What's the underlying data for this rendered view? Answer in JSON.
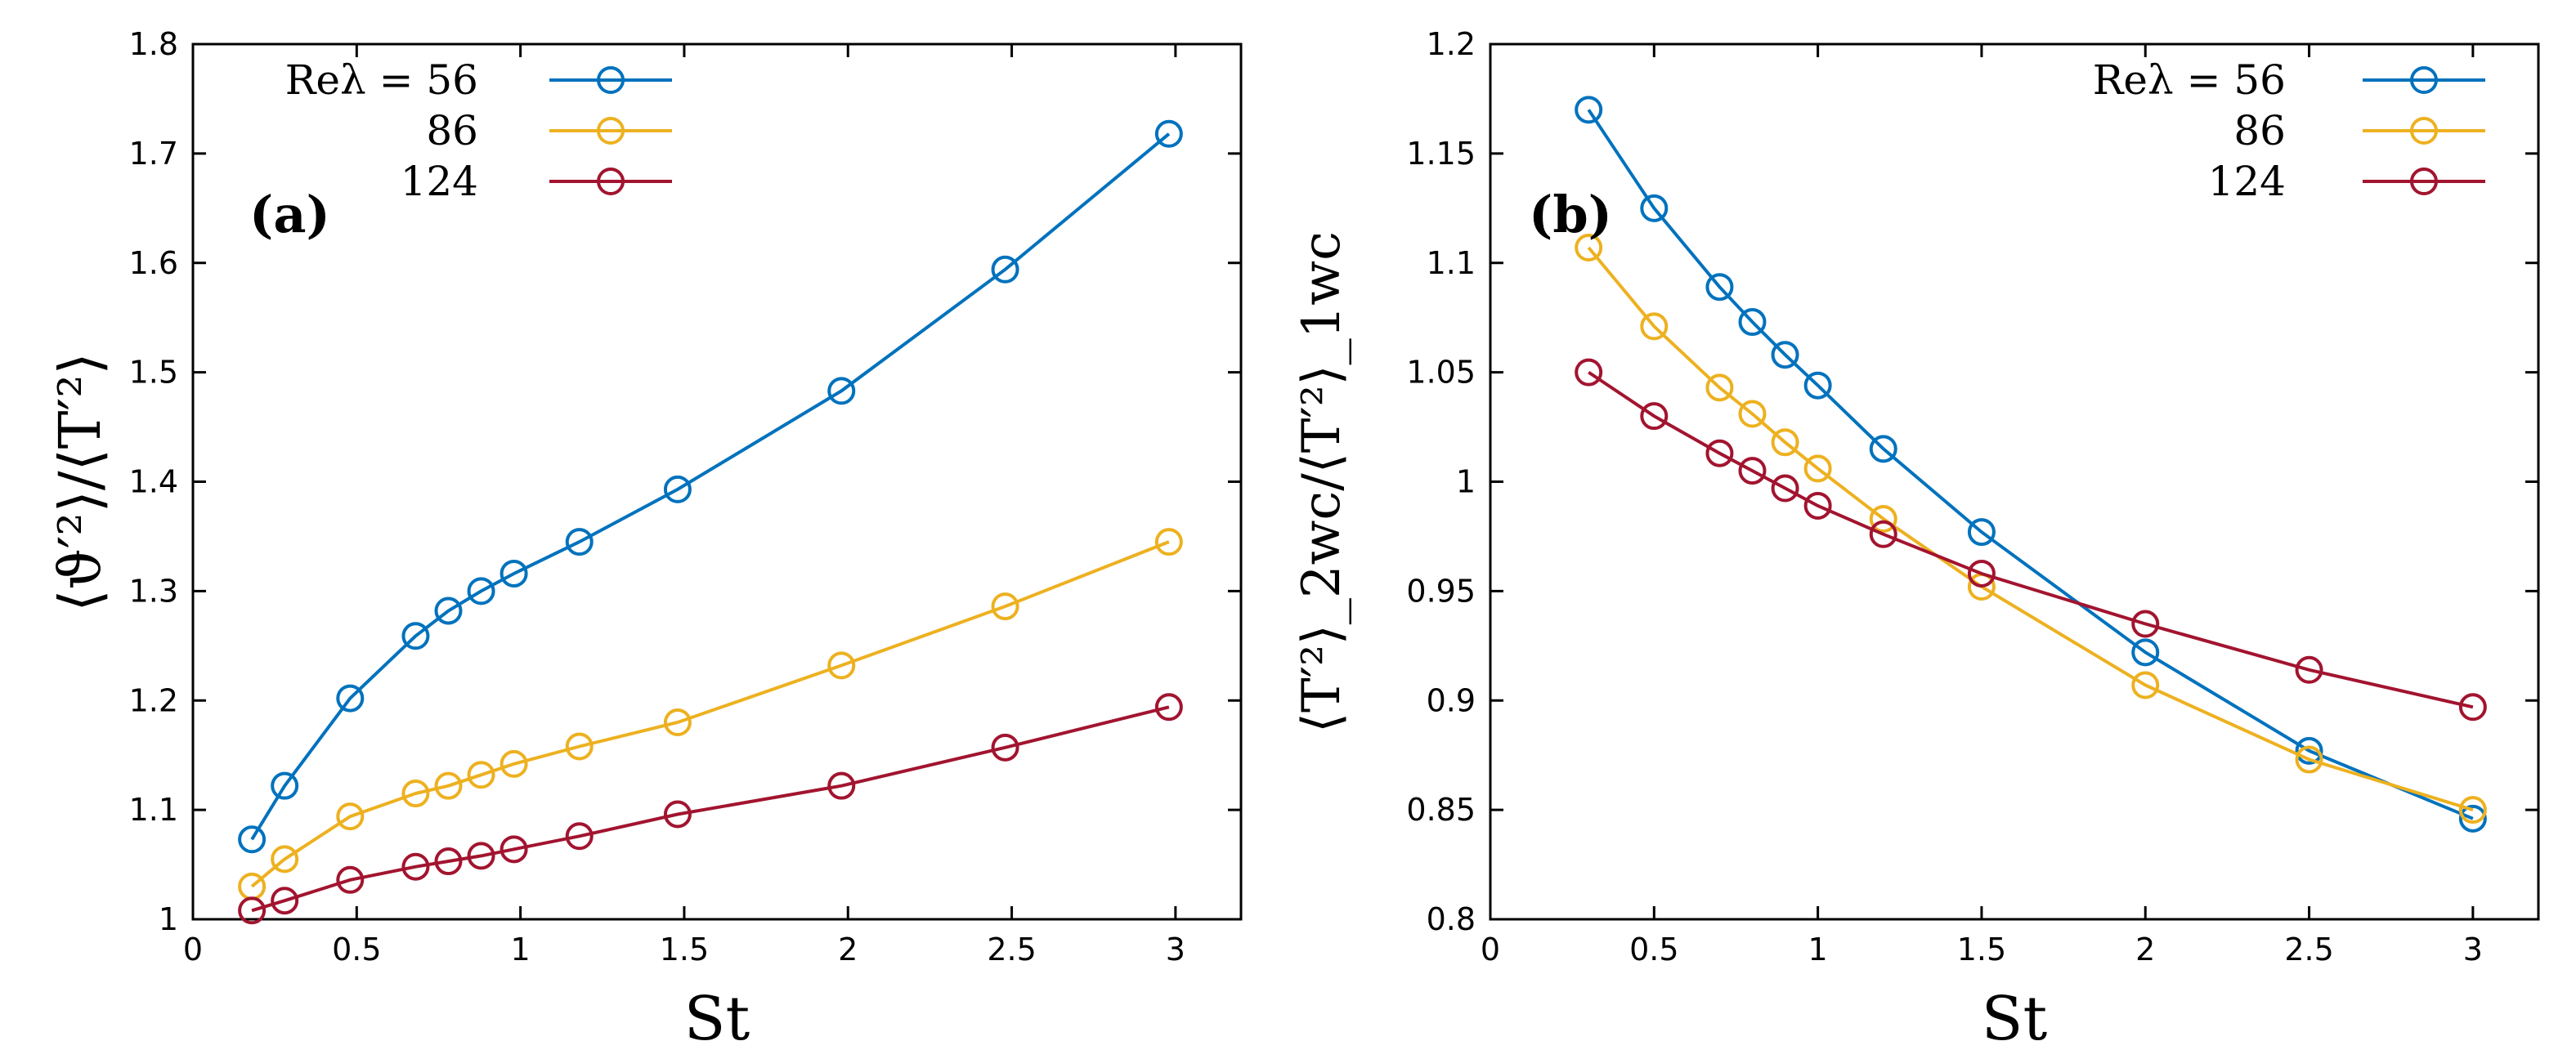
{
  "chart_data": [
    {
      "type": "line",
      "panel_label": "(a)",
      "xlabel": "St",
      "ylabel": "⟨ϑ′²⟩/⟨T′²⟩",
      "xlim": [
        0,
        3.2
      ],
      "ylim": [
        1,
        1.8
      ],
      "xticks": [
        0,
        0.5,
        1,
        1.5,
        2,
        2.5,
        3
      ],
      "xtick_labels": [
        "0",
        "0.5",
        "1",
        "1.5",
        "2",
        "2.5",
        "3"
      ],
      "yticks": [
        1,
        1.1,
        1.2,
        1.3,
        1.4,
        1.5,
        1.6,
        1.7,
        1.8
      ],
      "ytick_labels": [
        "1",
        "1.1",
        "1.2",
        "1.3",
        "1.4",
        "1.5",
        "1.6",
        "1.7",
        "1.8"
      ],
      "legend_position": "top-left",
      "legend_title": "Re_λ =",
      "series": [
        {
          "name": "56",
          "color": "#0072bd",
          "x": [
            0.18,
            0.28,
            0.48,
            0.68,
            0.78,
            0.88,
            0.98,
            1.18,
            1.48,
            1.98,
            2.48,
            2.98
          ],
          "y": [
            1.073,
            1.122,
            1.202,
            1.259,
            1.282,
            1.3,
            1.316,
            1.345,
            1.393,
            1.483,
            1.594,
            1.718
          ]
        },
        {
          "name": "86",
          "color": "#edb120",
          "x": [
            0.18,
            0.28,
            0.48,
            0.68,
            0.78,
            0.88,
            0.98,
            1.18,
            1.48,
            1.98,
            2.48,
            2.98
          ],
          "y": [
            1.03,
            1.055,
            1.094,
            1.115,
            1.122,
            1.132,
            1.142,
            1.158,
            1.18,
            1.232,
            1.286,
            1.345
          ]
        },
        {
          "name": "124",
          "color": "#a2142f",
          "x": [
            0.18,
            0.28,
            0.48,
            0.68,
            0.78,
            0.88,
            0.98,
            1.18,
            1.48,
            1.98,
            2.48,
            2.98
          ],
          "y": [
            1.008,
            1.017,
            1.036,
            1.048,
            1.053,
            1.058,
            1.064,
            1.076,
            1.096,
            1.122,
            1.157,
            1.194
          ]
        }
      ]
    },
    {
      "type": "line",
      "panel_label": "(b)",
      "xlabel": "St",
      "ylabel": "⟨T′²⟩_2wc/⟨T′²⟩_1wc",
      "xlim": [
        0,
        3.2
      ],
      "ylim": [
        0.8,
        1.2
      ],
      "xticks": [
        0,
        0.5,
        1,
        1.5,
        2,
        2.5,
        3
      ],
      "xtick_labels": [
        "0",
        "0.5",
        "1",
        "1.5",
        "2",
        "2.5",
        "3"
      ],
      "yticks": [
        0.8,
        0.85,
        0.9,
        0.95,
        1,
        1.05,
        1.1,
        1.15,
        1.2
      ],
      "ytick_labels": [
        "0.8",
        "0.85",
        "0.9",
        "0.95",
        "1",
        "1.05",
        "1.1",
        "1.15",
        "1.2"
      ],
      "legend_position": "top-right",
      "legend_title": "Re_λ =",
      "series": [
        {
          "name": "56",
          "color": "#0072bd",
          "x": [
            0.3,
            0.5,
            0.7,
            0.8,
            0.9,
            1.0,
            1.2,
            1.5,
            2.0,
            2.5,
            3.0
          ],
          "y": [
            1.17,
            1.125,
            1.089,
            1.073,
            1.058,
            1.044,
            1.015,
            0.977,
            0.922,
            0.877,
            0.846
          ]
        },
        {
          "name": "86",
          "color": "#edb120",
          "x": [
            0.3,
            0.5,
            0.7,
            0.8,
            0.9,
            1.0,
            1.2,
            1.5,
            2.0,
            2.5,
            3.0
          ],
          "y": [
            1.107,
            1.071,
            1.043,
            1.031,
            1.018,
            1.006,
            0.983,
            0.952,
            0.907,
            0.873,
            0.85
          ]
        },
        {
          "name": "124",
          "color": "#a2142f",
          "x": [
            0.3,
            0.5,
            0.7,
            0.8,
            0.9,
            1.0,
            1.2,
            1.5,
            2.0,
            2.5,
            3.0
          ],
          "y": [
            1.05,
            1.03,
            1.013,
            1.005,
            0.997,
            0.989,
            0.976,
            0.958,
            0.935,
            0.914,
            0.897
          ]
        }
      ]
    }
  ]
}
